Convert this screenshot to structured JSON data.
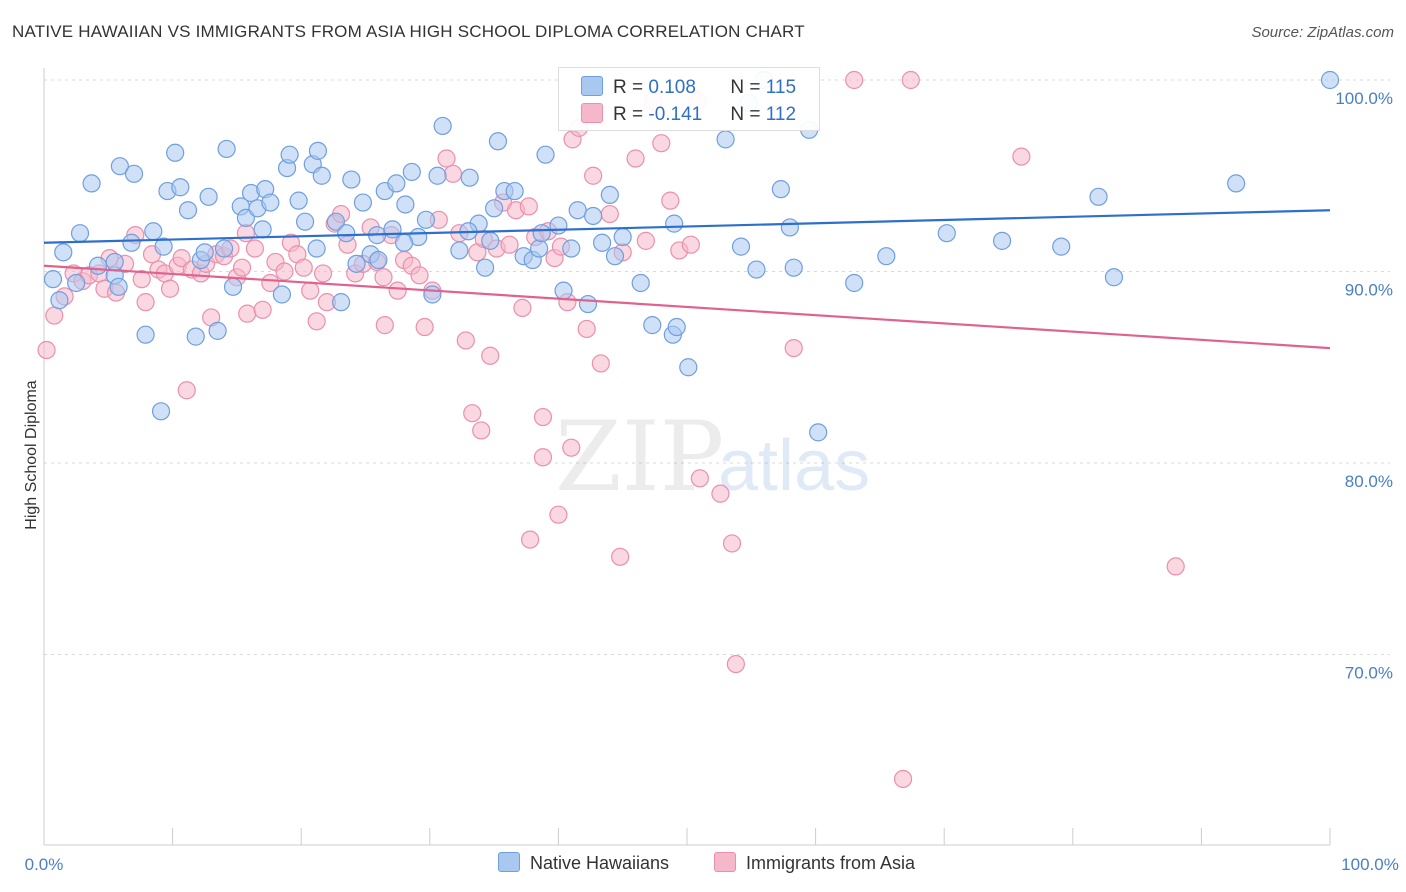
{
  "title": "NATIVE HAWAIIAN VS IMMIGRANTS FROM ASIA HIGH SCHOOL DIPLOMA CORRELATION CHART",
  "source": "Source: ZipAtlas.com",
  "watermark": {
    "zip": "ZIP",
    "atlas": "atlas"
  },
  "colors": {
    "blue_fill": "#a9c8f0",
    "blue_stroke": "#6f9fe0",
    "blue_line": "#2e6fcc",
    "pink_fill": "#f5b8cb",
    "pink_stroke": "#ec8fad",
    "pink_line": "#e0628e",
    "tick_text": "#4a7fc4",
    "grid": "#d9d9d9"
  },
  "legend": {
    "rows": [
      {
        "r_label": "R = ",
        "r_value": "0.108",
        "n_label": "N = ",
        "n_value": "115",
        "color": "#a9c8f0"
      },
      {
        "r_label": "R = ",
        "r_value": "-0.141",
        "n_label": "N = ",
        "n_value": "112",
        "color": "#f5b8cb"
      }
    ]
  },
  "bottom_legend": [
    "Native Hawaiians",
    "Immigrants from Asia"
  ],
  "chart_data": {
    "type": "scatter",
    "title": "NATIVE HAWAIIAN VS IMMIGRANTS FROM ASIA HIGH SCHOOL DIPLOMA CORRELATION CHART",
    "xlabel": "",
    "ylabel": "High School Diploma",
    "xlim": [
      0,
      100
    ],
    "ylim": [
      60,
      104
    ],
    "x_tick_labels": [
      "0.0%",
      "100.0%"
    ],
    "y_ticks": [
      70,
      80,
      90,
      100
    ],
    "y_tick_labels": [
      "70.0%",
      "80.0%",
      "90.0%",
      "100.0%"
    ],
    "grid": true,
    "legend_placement": "top-center",
    "series": [
      {
        "name": "Native Hawaiians",
        "r": 0.108,
        "n": 115,
        "trend": {
          "x": [
            0,
            100
          ],
          "y": [
            91.5,
            93.2
          ]
        },
        "points": [
          [
            0.7,
            89.6
          ],
          [
            1.5,
            91.0
          ],
          [
            2.5,
            89.4
          ],
          [
            2.8,
            92.0
          ],
          [
            3.7,
            94.6
          ],
          [
            4.2,
            90.3
          ],
          [
            5.5,
            89.8
          ],
          [
            5.5,
            90.5
          ],
          [
            5.8,
            89.2
          ],
          [
            5.9,
            95.5
          ],
          [
            7.0,
            95.1
          ],
          [
            7.9,
            86.7
          ],
          [
            8.5,
            92.1
          ],
          [
            9.1,
            82.7
          ],
          [
            9.3,
            91.3
          ],
          [
            9.6,
            94.2
          ],
          [
            10.2,
            96.2
          ],
          [
            10.6,
            94.4
          ],
          [
            11.2,
            93.2
          ],
          [
            11.8,
            86.6
          ],
          [
            12.2,
            90.6
          ],
          [
            12.8,
            93.9
          ],
          [
            13.5,
            86.9
          ],
          [
            14.0,
            91.2
          ],
          [
            14.2,
            96.4
          ],
          [
            14.7,
            89.2
          ],
          [
            15.3,
            93.4
          ],
          [
            15.7,
            92.8
          ],
          [
            16.1,
            94.1
          ],
          [
            16.6,
            93.3
          ],
          [
            17.2,
            94.3
          ],
          [
            17.6,
            93.6
          ],
          [
            18.5,
            88.8
          ],
          [
            18.9,
            95.4
          ],
          [
            19.1,
            96.1
          ],
          [
            19.8,
            93.7
          ],
          [
            20.3,
            92.6
          ],
          [
            20.9,
            95.6
          ],
          [
            21.3,
            96.3
          ],
          [
            21.6,
            95.0
          ],
          [
            22.7,
            92.6
          ],
          [
            23.1,
            88.4
          ],
          [
            23.5,
            92.0
          ],
          [
            23.9,
            94.8
          ],
          [
            24.3,
            90.4
          ],
          [
            24.8,
            93.6
          ],
          [
            25.4,
            90.9
          ],
          [
            25.9,
            91.9
          ],
          [
            26.5,
            94.2
          ],
          [
            27.1,
            92.2
          ],
          [
            27.4,
            94.6
          ],
          [
            28.1,
            93.5
          ],
          [
            28.6,
            95.2
          ],
          [
            29.1,
            91.8
          ],
          [
            29.7,
            92.7
          ],
          [
            30.2,
            88.8
          ],
          [
            30.6,
            95.0
          ],
          [
            31.0,
            97.6
          ],
          [
            32.3,
            91.1
          ],
          [
            33.1,
            94.9
          ],
          [
            33.8,
            92.5
          ],
          [
            34.3,
            90.2
          ],
          [
            34.7,
            91.6
          ],
          [
            35.3,
            96.8
          ],
          [
            35.8,
            94.2
          ],
          [
            36.6,
            94.2
          ],
          [
            37.3,
            90.8
          ],
          [
            38.0,
            90.6
          ],
          [
            38.5,
            91.2
          ],
          [
            39.0,
            96.1
          ],
          [
            40.0,
            92.4
          ],
          [
            40.4,
            89.0
          ],
          [
            41.0,
            91.2
          ],
          [
            41.5,
            93.2
          ],
          [
            42.3,
            88.3
          ],
          [
            42.7,
            92.9
          ],
          [
            43.4,
            91.5
          ],
          [
            44.4,
            90.8
          ],
          [
            46.4,
            89.4
          ],
          [
            47.3,
            87.2
          ],
          [
            48.9,
            86.7
          ],
          [
            49.2,
            87.1
          ],
          [
            50.1,
            85.0
          ],
          [
            53.0,
            96.9
          ],
          [
            54.2,
            91.3
          ],
          [
            54.8,
            98.8
          ],
          [
            55.4,
            90.1
          ],
          [
            56.0,
            100.0
          ],
          [
            57.3,
            94.3
          ],
          [
            58.0,
            92.3
          ],
          [
            58.3,
            90.2
          ],
          [
            59.5,
            97.4
          ],
          [
            60.2,
            81.6
          ],
          [
            63.0,
            89.4
          ],
          [
            65.5,
            90.8
          ],
          [
            70.2,
            92.0
          ],
          [
            74.5,
            91.6
          ],
          [
            79.1,
            91.3
          ],
          [
            82.0,
            93.9
          ],
          [
            83.2,
            89.7
          ],
          [
            92.7,
            94.6
          ],
          [
            100.0,
            100.0
          ],
          [
            1.2,
            88.5
          ],
          [
            6.8,
            91.5
          ],
          [
            12.5,
            91.0
          ],
          [
            21.2,
            91.2
          ],
          [
            26.0,
            90.6
          ],
          [
            33.0,
            92.1
          ],
          [
            38.7,
            92.0
          ],
          [
            45.0,
            91.8
          ],
          [
            49.0,
            92.5
          ],
          [
            35.0,
            93.3
          ],
          [
            28.0,
            91.5
          ],
          [
            17.0,
            92.2
          ],
          [
            44.0,
            94.0
          ]
        ]
      },
      {
        "name": "Immigrants from Asia",
        "r": -0.141,
        "n": 112,
        "trend": {
          "x": [
            0,
            100
          ],
          "y": [
            90.3,
            86.0
          ]
        },
        "points": [
          [
            0.2,
            85.9
          ],
          [
            0.8,
            87.7
          ],
          [
            1.6,
            88.7
          ],
          [
            2.3,
            89.9
          ],
          [
            3.0,
            89.5
          ],
          [
            3.5,
            89.8
          ],
          [
            4.3,
            89.9
          ],
          [
            4.7,
            89.1
          ],
          [
            5.1,
            90.7
          ],
          [
            5.6,
            88.9
          ],
          [
            6.3,
            90.4
          ],
          [
            7.1,
            91.9
          ],
          [
            7.6,
            89.6
          ],
          [
            7.9,
            88.4
          ],
          [
            8.4,
            90.9
          ],
          [
            8.9,
            90.1
          ],
          [
            9.4,
            89.9
          ],
          [
            9.8,
            89.1
          ],
          [
            10.4,
            90.3
          ],
          [
            10.7,
            90.7
          ],
          [
            11.1,
            83.8
          ],
          [
            11.5,
            90.1
          ],
          [
            12.2,
            89.9
          ],
          [
            12.6,
            90.4
          ],
          [
            13.0,
            87.6
          ],
          [
            13.4,
            90.9
          ],
          [
            14.0,
            90.8
          ],
          [
            14.5,
            91.2
          ],
          [
            15.0,
            89.7
          ],
          [
            15.4,
            90.2
          ],
          [
            15.7,
            92.0
          ],
          [
            15.8,
            87.8
          ],
          [
            16.4,
            91.2
          ],
          [
            17.0,
            88.0
          ],
          [
            17.6,
            89.4
          ],
          [
            18.0,
            90.5
          ],
          [
            18.7,
            90.0
          ],
          [
            19.2,
            91.5
          ],
          [
            19.7,
            90.9
          ],
          [
            20.2,
            90.2
          ],
          [
            20.7,
            89.0
          ],
          [
            21.2,
            87.4
          ],
          [
            21.7,
            89.9
          ],
          [
            22.0,
            88.4
          ],
          [
            22.6,
            92.5
          ],
          [
            23.1,
            93.0
          ],
          [
            23.6,
            91.4
          ],
          [
            24.2,
            89.9
          ],
          [
            24.8,
            90.4
          ],
          [
            25.4,
            92.3
          ],
          [
            25.9,
            90.5
          ],
          [
            26.4,
            89.7
          ],
          [
            27.0,
            91.9
          ],
          [
            27.5,
            89.0
          ],
          [
            28.0,
            90.6
          ],
          [
            28.6,
            90.3
          ],
          [
            29.2,
            89.8
          ],
          [
            29.6,
            87.1
          ],
          [
            30.2,
            89.0
          ],
          [
            30.7,
            92.7
          ],
          [
            31.3,
            95.9
          ],
          [
            31.8,
            95.1
          ],
          [
            32.3,
            92.0
          ],
          [
            32.8,
            86.4
          ],
          [
            33.3,
            82.6
          ],
          [
            33.7,
            91.0
          ],
          [
            34.2,
            91.7
          ],
          [
            34.7,
            85.6
          ],
          [
            35.2,
            91.2
          ],
          [
            35.7,
            93.6
          ],
          [
            36.2,
            91.4
          ],
          [
            36.7,
            93.2
          ],
          [
            37.2,
            88.1
          ],
          [
            37.7,
            93.4
          ],
          [
            38.2,
            91.8
          ],
          [
            38.8,
            80.3
          ],
          [
            39.2,
            92.1
          ],
          [
            39.7,
            90.7
          ],
          [
            40.2,
            91.3
          ],
          [
            40.7,
            88.4
          ],
          [
            41.1,
            96.9
          ],
          [
            41.6,
            97.5
          ],
          [
            42.2,
            87.0
          ],
          [
            42.7,
            95.0
          ],
          [
            43.3,
            85.2
          ],
          [
            44.0,
            93.0
          ],
          [
            45.0,
            91.0
          ],
          [
            46.0,
            95.9
          ],
          [
            46.8,
            91.6
          ],
          [
            47.4,
            98.9
          ],
          [
            48.0,
            96.7
          ],
          [
            48.7,
            93.7
          ],
          [
            49.4,
            91.1
          ],
          [
            50.3,
            91.4
          ],
          [
            50.8,
            98.9
          ],
          [
            51.0,
            79.2
          ],
          [
            52.6,
            78.4
          ],
          [
            53.5,
            75.8
          ],
          [
            53.8,
            69.5
          ],
          [
            58.3,
            86.0
          ],
          [
            63.0,
            100.0
          ],
          [
            66.8,
            63.5
          ],
          [
            67.4,
            100.0
          ],
          [
            76.0,
            96.0
          ],
          [
            88.0,
            74.6
          ],
          [
            41.0,
            80.8
          ],
          [
            44.8,
            75.1
          ],
          [
            40.0,
            77.3
          ],
          [
            37.8,
            76.0
          ],
          [
            38.8,
            82.4
          ],
          [
            34.0,
            81.7
          ],
          [
            26.5,
            87.2
          ]
        ]
      }
    ]
  }
}
